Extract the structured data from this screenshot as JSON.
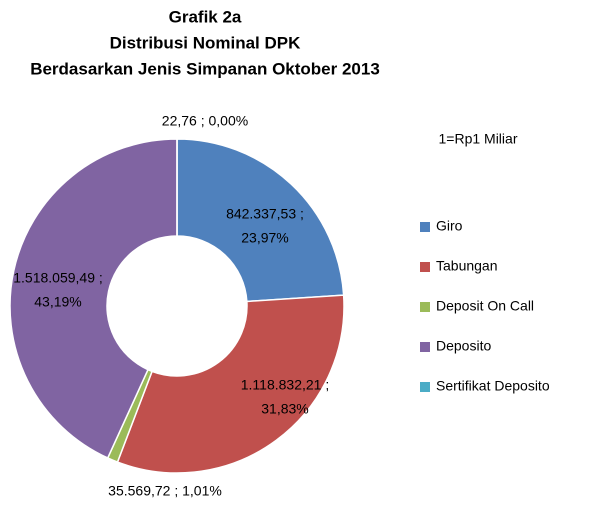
{
  "chart_data": {
    "type": "donut",
    "title": [
      "Grafik 2a",
      "Distribusi  Nominal DPK",
      "Berdasarkan Jenis Simpanan Oktober 2013"
    ],
    "note": "1=Rp1 Miliar",
    "categories": [
      "Giro",
      "Tabungan",
      "Deposit On Call",
      "Deposito",
      "Sertifikat Deposito"
    ],
    "values": [
      842337.53,
      1118832.21,
      35569.72,
      1518059.49,
      22.76
    ],
    "value_labels": [
      [
        "842.337,53 ;",
        "23,97%"
      ],
      [
        "1.118.832,21 ;",
        "31,83%"
      ],
      [
        "35.569,72 ; 1,01%"
      ],
      [
        "1.518.059,49 ;",
        "43,19%"
      ],
      [
        "22,76 ; 0,00%"
      ]
    ],
    "colors": [
      "#4f81bd",
      "#c0504d",
      "#9bbb59",
      "#8064a2",
      "#4bacc6"
    ],
    "legend": "right"
  }
}
